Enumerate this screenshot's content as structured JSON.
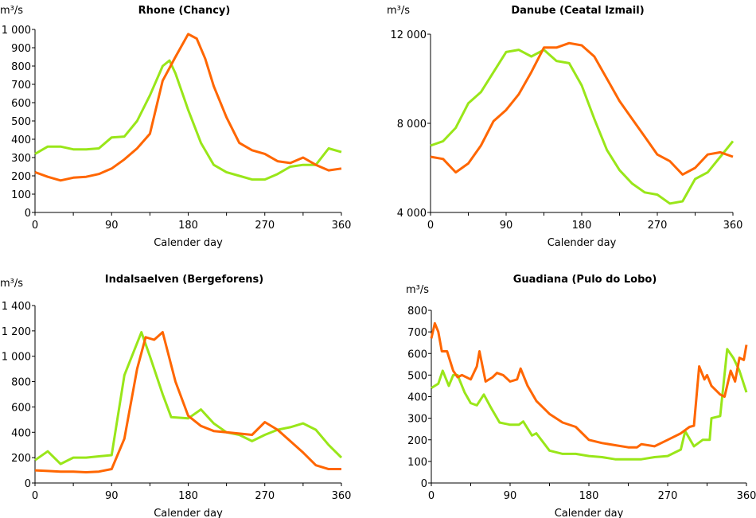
{
  "chart_data": [
    {
      "type": "line",
      "title": "Rhone (Chancy)",
      "ylabel": "m³/s",
      "xlabel": "Calender day",
      "xlim": [
        0,
        360
      ],
      "ylim": [
        0,
        1000
      ],
      "xticks": [
        0,
        90,
        180,
        270,
        360
      ],
      "xtick_labels": [
        "0",
        "90",
        "180",
        "270",
        "360"
      ],
      "yticks": [
        0,
        100,
        200,
        300,
        400,
        500,
        600,
        700,
        800,
        900,
        1000
      ],
      "ytick_labels": [
        "0",
        "100",
        "200",
        "300",
        "400",
        "500",
        "600",
        "700",
        "800",
        "900",
        "1 000"
      ],
      "series": [
        {
          "name": "green",
          "color": "#99e619",
          "points": [
            [
              0,
              320
            ],
            [
              15,
              360
            ],
            [
              30,
              360
            ],
            [
              45,
              345
            ],
            [
              60,
              345
            ],
            [
              75,
              350
            ],
            [
              90,
              410
            ],
            [
              105,
              415
            ],
            [
              120,
              500
            ],
            [
              135,
              640
            ],
            [
              150,
              800
            ],
            [
              158,
              830
            ],
            [
              165,
              760
            ],
            [
              180,
              560
            ],
            [
              195,
              380
            ],
            [
              210,
              260
            ],
            [
              225,
              220
            ],
            [
              240,
              200
            ],
            [
              255,
              180
            ],
            [
              270,
              180
            ],
            [
              285,
              210
            ],
            [
              300,
              250
            ],
            [
              315,
              260
            ],
            [
              330,
              260
            ],
            [
              345,
              350
            ],
            [
              360,
              330
            ]
          ]
        },
        {
          "name": "orange",
          "color": "#ff6600",
          "points": [
            [
              0,
              220
            ],
            [
              15,
              195
            ],
            [
              30,
              175
            ],
            [
              45,
              190
            ],
            [
              60,
              195
            ],
            [
              75,
              210
            ],
            [
              90,
              240
            ],
            [
              105,
              290
            ],
            [
              120,
              350
            ],
            [
              135,
              430
            ],
            [
              150,
              720
            ],
            [
              165,
              850
            ],
            [
              180,
              975
            ],
            [
              190,
              950
            ],
            [
              200,
              840
            ],
            [
              210,
              690
            ],
            [
              225,
              520
            ],
            [
              240,
              380
            ],
            [
              255,
              340
            ],
            [
              270,
              320
            ],
            [
              285,
              280
            ],
            [
              300,
              270
            ],
            [
              315,
              300
            ],
            [
              330,
              260
            ],
            [
              345,
              230
            ],
            [
              360,
              240
            ]
          ]
        }
      ]
    },
    {
      "type": "line",
      "title": "Danube (Ceatal Izmail)",
      "ylabel": "m³/s",
      "xlabel": "Calender day",
      "xlim": [
        0,
        360
      ],
      "ylim": [
        4000,
        12000
      ],
      "xticks": [
        0,
        90,
        180,
        270,
        360
      ],
      "xtick_labels": [
        "0",
        "90",
        "180",
        "270",
        "360"
      ],
      "yticks": [
        4000,
        8000,
        12000
      ],
      "ytick_labels": [
        "4 000",
        "8 000",
        "12 000"
      ],
      "series": [
        {
          "name": "green",
          "color": "#99e619",
          "points": [
            [
              0,
              7000
            ],
            [
              15,
              7200
            ],
            [
              30,
              7800
            ],
            [
              45,
              8900
            ],
            [
              60,
              9400
            ],
            [
              75,
              10300
            ],
            [
              90,
              11200
            ],
            [
              105,
              11300
            ],
            [
              120,
              11000
            ],
            [
              135,
              11300
            ],
            [
              150,
              10800
            ],
            [
              165,
              10700
            ],
            [
              180,
              9700
            ],
            [
              195,
              8200
            ],
            [
              210,
              6800
            ],
            [
              225,
              5900
            ],
            [
              240,
              5300
            ],
            [
              255,
              4900
            ],
            [
              270,
              4800
            ],
            [
              285,
              4400
            ],
            [
              300,
              4500
            ],
            [
              315,
              5500
            ],
            [
              330,
              5800
            ],
            [
              345,
              6500
            ],
            [
              360,
              7200
            ]
          ]
        },
        {
          "name": "orange",
          "color": "#ff6600",
          "points": [
            [
              0,
              6500
            ],
            [
              15,
              6400
            ],
            [
              30,
              5800
            ],
            [
              45,
              6200
            ],
            [
              60,
              7000
            ],
            [
              75,
              8100
            ],
            [
              90,
              8600
            ],
            [
              105,
              9300
            ],
            [
              120,
              10300
            ],
            [
              135,
              11400
            ],
            [
              150,
              11400
            ],
            [
              165,
              11600
            ],
            [
              180,
              11500
            ],
            [
              195,
              11000
            ],
            [
              210,
              10000
            ],
            [
              225,
              9000
            ],
            [
              240,
              8200
            ],
            [
              255,
              7400
            ],
            [
              270,
              6600
            ],
            [
              285,
              6300
            ],
            [
              300,
              5700
            ],
            [
              315,
              6000
            ],
            [
              330,
              6600
            ],
            [
              345,
              6700
            ],
            [
              360,
              6500
            ]
          ]
        }
      ]
    },
    {
      "type": "line",
      "title": "Indalsaelven (Bergeforens)",
      "ylabel": "m³/s",
      "xlabel": "Calender day",
      "xlim": [
        0,
        360
      ],
      "ylim": [
        0,
        1400
      ],
      "xticks": [
        0,
        90,
        180,
        270,
        360
      ],
      "xtick_labels": [
        "0",
        "90",
        "180",
        "270",
        "360"
      ],
      "yticks": [
        0,
        200,
        400,
        600,
        800,
        1000,
        1200,
        1400
      ],
      "ytick_labels": [
        "0",
        "200",
        "400",
        "600",
        "800",
        "1 000",
        "1 200",
        "1 400"
      ],
      "series": [
        {
          "name": "green",
          "color": "#99e619",
          "points": [
            [
              0,
              180
            ],
            [
              15,
              250
            ],
            [
              30,
              150
            ],
            [
              45,
              200
            ],
            [
              60,
              200
            ],
            [
              75,
              210
            ],
            [
              90,
              220
            ],
            [
              105,
              850
            ],
            [
              125,
              1190
            ],
            [
              135,
              1000
            ],
            [
              150,
              700
            ],
            [
              160,
              520
            ],
            [
              180,
              510
            ],
            [
              195,
              580
            ],
            [
              210,
              470
            ],
            [
              225,
              400
            ],
            [
              240,
              380
            ],
            [
              255,
              330
            ],
            [
              270,
              380
            ],
            [
              285,
              420
            ],
            [
              300,
              440
            ],
            [
              315,
              470
            ],
            [
              330,
              420
            ],
            [
              345,
              300
            ],
            [
              360,
              200
            ]
          ]
        },
        {
          "name": "orange",
          "color": "#ff6600",
          "points": [
            [
              0,
              100
            ],
            [
              15,
              95
            ],
            [
              30,
              90
            ],
            [
              45,
              90
            ],
            [
              60,
              85
            ],
            [
              75,
              90
            ],
            [
              90,
              110
            ],
            [
              105,
              350
            ],
            [
              120,
              900
            ],
            [
              130,
              1150
            ],
            [
              140,
              1130
            ],
            [
              150,
              1190
            ],
            [
              165,
              800
            ],
            [
              180,
              530
            ],
            [
              195,
              450
            ],
            [
              210,
              410
            ],
            [
              225,
              400
            ],
            [
              240,
              390
            ],
            [
              255,
              380
            ],
            [
              270,
              480
            ],
            [
              285,
              420
            ],
            [
              300,
              330
            ],
            [
              315,
              240
            ],
            [
              330,
              140
            ],
            [
              345,
              110
            ],
            [
              360,
              110
            ]
          ]
        }
      ]
    },
    {
      "type": "line",
      "title": "Guadiana (Pulo do Lobo)",
      "ylabel": "m³/s",
      "xlabel": "Calender day",
      "xlim": [
        0,
        360
      ],
      "ylim": [
        0,
        800
      ],
      "xticks": [
        0,
        90,
        180,
        270,
        360
      ],
      "xtick_labels": [
        "0",
        "90",
        "180",
        "270",
        "360"
      ],
      "yticks": [
        0,
        100,
        200,
        300,
        400,
        500,
        600,
        700,
        800
      ],
      "ytick_labels": [
        "0",
        "100",
        "200",
        "300",
        "400",
        "500",
        "600",
        "700",
        "800"
      ],
      "series": [
        {
          "name": "green",
          "color": "#99e619",
          "points": [
            [
              0,
              440
            ],
            [
              8,
              460
            ],
            [
              13,
              520
            ],
            [
              20,
              450
            ],
            [
              25,
              500
            ],
            [
              30,
              500
            ],
            [
              38,
              420
            ],
            [
              45,
              370
            ],
            [
              52,
              360
            ],
            [
              60,
              410
            ],
            [
              68,
              350
            ],
            [
              78,
              280
            ],
            [
              90,
              270
            ],
            [
              100,
              270
            ],
            [
              105,
              285
            ],
            [
              115,
              220
            ],
            [
              120,
              230
            ],
            [
              135,
              150
            ],
            [
              150,
              135
            ],
            [
              165,
              135
            ],
            [
              180,
              125
            ],
            [
              195,
              120
            ],
            [
              210,
              110
            ],
            [
              225,
              110
            ],
            [
              240,
              110
            ],
            [
              255,
              120
            ],
            [
              270,
              125
            ],
            [
              285,
              155
            ],
            [
              290,
              240
            ],
            [
              300,
              170
            ],
            [
              310,
              200
            ],
            [
              318,
              200
            ],
            [
              320,
              300
            ],
            [
              330,
              310
            ],
            [
              338,
              620
            ],
            [
              345,
              580
            ],
            [
              352,
              520
            ],
            [
              360,
              420
            ]
          ]
        },
        {
          "name": "orange",
          "color": "#ff6600",
          "points": [
            [
              0,
              670
            ],
            [
              4,
              740
            ],
            [
              8,
              700
            ],
            [
              12,
              610
            ],
            [
              18,
              610
            ],
            [
              25,
              520
            ],
            [
              30,
              490
            ],
            [
              35,
              500
            ],
            [
              45,
              480
            ],
            [
              52,
              540
            ],
            [
              55,
              610
            ],
            [
              62,
              470
            ],
            [
              70,
              490
            ],
            [
              75,
              510
            ],
            [
              82,
              500
            ],
            [
              90,
              470
            ],
            [
              98,
              480
            ],
            [
              102,
              530
            ],
            [
              110,
              450
            ],
            [
              120,
              380
            ],
            [
              135,
              320
            ],
            [
              150,
              280
            ],
            [
              165,
              260
            ],
            [
              180,
              200
            ],
            [
              195,
              185
            ],
            [
              210,
              175
            ],
            [
              225,
              165
            ],
            [
              235,
              165
            ],
            [
              240,
              180
            ],
            [
              255,
              170
            ],
            [
              270,
              200
            ],
            [
              285,
              230
            ],
            [
              295,
              260
            ],
            [
              300,
              265
            ],
            [
              306,
              540
            ],
            [
              312,
              480
            ],
            [
              315,
              500
            ],
            [
              320,
              450
            ],
            [
              330,
              410
            ],
            [
              335,
              400
            ],
            [
              342,
              520
            ],
            [
              347,
              470
            ],
            [
              352,
              580
            ],
            [
              357,
              570
            ],
            [
              360,
              640
            ]
          ]
        }
      ]
    }
  ]
}
